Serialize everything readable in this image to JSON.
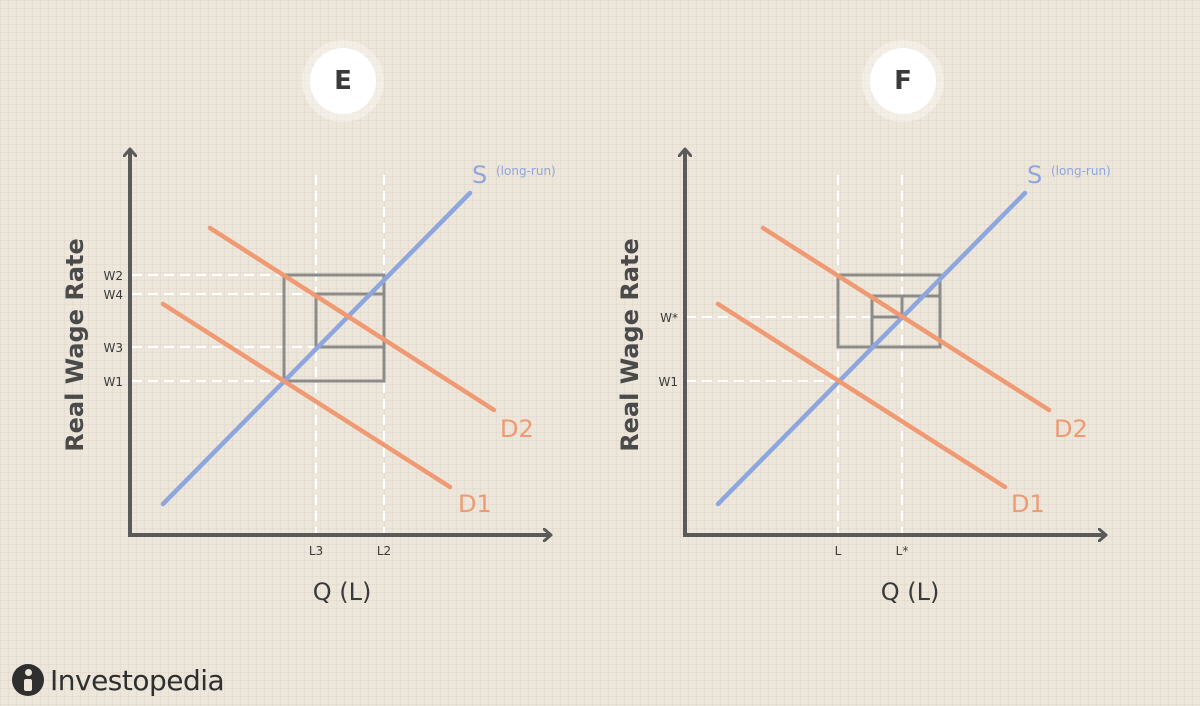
{
  "colors": {
    "axis": "#5a5a5a",
    "supply": "#8ea6de",
    "demand": "#ef9a72",
    "guide": "#ffffff",
    "tick_text": "#3a3a3a"
  },
  "panels": [
    {
      "id": "E",
      "badge": "E",
      "y_axis_label": "Real Wage Rate",
      "x_axis_label": "Q (L)",
      "supply": {
        "label": "S",
        "sublabel": "(long-run)"
      },
      "demand": [
        {
          "label": "D1"
        },
        {
          "label": "D2"
        }
      ],
      "y_ticks": [
        "W2",
        "W4",
        "W3",
        "W1"
      ],
      "x_ticks": [
        "L3",
        "L2"
      ]
    },
    {
      "id": "F",
      "badge": "F",
      "y_axis_label": "Real Wage Rate",
      "x_axis_label": "Q (L)",
      "supply": {
        "label": "S",
        "sublabel": "(long-run)"
      },
      "demand": [
        {
          "label": "D1"
        },
        {
          "label": "D2"
        }
      ],
      "y_ticks": [
        "W*",
        "W1"
      ],
      "x_ticks": [
        "L",
        "L*"
      ]
    }
  ],
  "brand": {
    "name": "Investopedia",
    "icon": "investopedia-logo-icon"
  }
}
